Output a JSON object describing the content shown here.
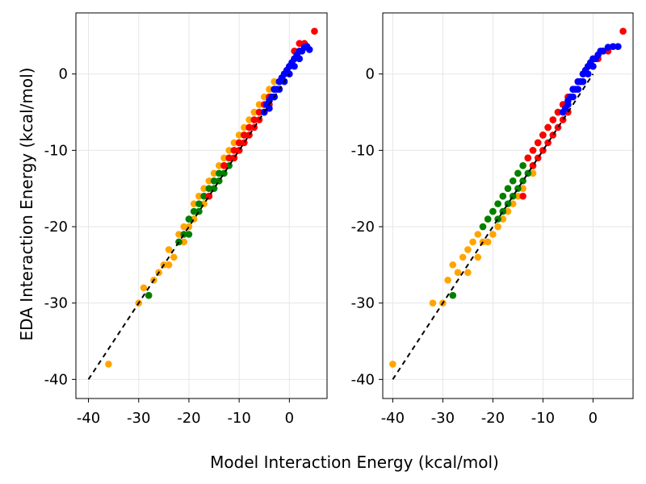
{
  "colors": {
    "orange": "#ffa500",
    "green": "#008000",
    "red": "#ff0000",
    "blue": "#0000ff",
    "reference_line": "#000000",
    "grid": "#e6e6e6"
  },
  "xlabel": "Model Interaction Energy (kcal/mol)",
  "ylabel": "EDA Interaction Energy (kcal/mol)",
  "chart_data": [
    {
      "type": "scatter",
      "xlim": [
        -42.5,
        7.5
      ],
      "ylim": [
        -42.5,
        8
      ],
      "x_ticks": [
        -40,
        -30,
        -20,
        -10,
        0
      ],
      "y_ticks": [
        -40,
        -30,
        -20,
        -10,
        0
      ],
      "x_tick_labels": [
        "-40",
        "-30",
        "-20",
        "-10",
        "0"
      ],
      "y_tick_labels": [
        "-40",
        "-30",
        "-20",
        "-10",
        "0"
      ],
      "grid": true,
      "reference_line": {
        "style": "dashed",
        "from": [
          -40,
          -40
        ],
        "to": [
          0,
          0
        ]
      },
      "series": [
        {
          "color": "orange",
          "points": [
            [
              -36,
              -38
            ],
            [
              -30,
              -30
            ],
            [
              -29,
              -28
            ],
            [
              -28,
              -29
            ],
            [
              -27,
              -27
            ],
            [
              -26,
              -26
            ],
            [
              -25,
              -25
            ],
            [
              -24,
              -25
            ],
            [
              -24,
              -23
            ],
            [
              -23,
              -24
            ],
            [
              -22,
              -22
            ],
            [
              -22,
              -21
            ],
            [
              -21,
              -22
            ],
            [
              -21,
              -20
            ],
            [
              -20,
              -20
            ],
            [
              -20,
              -19
            ],
            [
              -19,
              -19
            ],
            [
              -19,
              -17
            ],
            [
              -18,
              -18
            ],
            [
              -18,
              -16
            ],
            [
              -17,
              -17
            ],
            [
              -17,
              -15
            ],
            [
              -16,
              -16
            ],
            [
              -16,
              -14
            ],
            [
              -15,
              -14
            ],
            [
              -15,
              -13
            ],
            [
              -14,
              -14
            ],
            [
              -14,
              -12
            ],
            [
              -13,
              -12
            ],
            [
              -13,
              -11
            ],
            [
              -12,
              -11
            ],
            [
              -12,
              -10
            ],
            [
              -11,
              -9
            ],
            [
              -10,
              -8
            ],
            [
              -9,
              -7
            ],
            [
              -8,
              -6
            ],
            [
              -7,
              -5
            ],
            [
              -6,
              -4
            ],
            [
              -5,
              -3
            ],
            [
              -4,
              -2
            ],
            [
              -3,
              -1
            ]
          ]
        },
        {
          "color": "green",
          "points": [
            [
              -28,
              -29
            ],
            [
              -22,
              -22
            ],
            [
              -21,
              -21
            ],
            [
              -20,
              -21
            ],
            [
              -20,
              -19
            ],
            [
              -19,
              -18
            ],
            [
              -18,
              -18
            ],
            [
              -18,
              -17
            ],
            [
              -17,
              -16
            ],
            [
              -16,
              -16
            ],
            [
              -16,
              -15
            ],
            [
              -15,
              -14
            ],
            [
              -15,
              -15
            ],
            [
              -14,
              -13
            ],
            [
              -14,
              -14
            ],
            [
              -13,
              -12
            ],
            [
              -13,
              -13
            ],
            [
              -12,
              -12
            ],
            [
              -12,
              -11
            ],
            [
              -11,
              -10
            ],
            [
              -11,
              -11
            ],
            [
              -10,
              -9
            ],
            [
              -10,
              -10
            ],
            [
              -9,
              -8
            ],
            [
              -8,
              -7
            ],
            [
              -7,
              -6
            ],
            [
              -6,
              -5
            ],
            [
              -5,
              -5
            ],
            [
              -4,
              -3
            ],
            [
              -3,
              -3
            ],
            [
              -2,
              -1
            ],
            [
              -1,
              0
            ],
            [
              0,
              1
            ]
          ]
        },
        {
          "color": "red",
          "points": [
            [
              -16,
              -16
            ],
            [
              -13,
              -12
            ],
            [
              -12,
              -11
            ],
            [
              -11,
              -10
            ],
            [
              -11,
              -11
            ],
            [
              -10,
              -9
            ],
            [
              -10,
              -10
            ],
            [
              -9,
              -8
            ],
            [
              -9,
              -9
            ],
            [
              -8,
              -7
            ],
            [
              -8,
              -8
            ],
            [
              -7,
              -6
            ],
            [
              -7,
              -7
            ],
            [
              -6,
              -5
            ],
            [
              -6,
              -6
            ],
            [
              -5,
              -4
            ],
            [
              -5,
              -5
            ],
            [
              -4,
              -3
            ],
            [
              -4,
              -4
            ],
            [
              -3,
              -2
            ],
            [
              -2,
              -1
            ],
            [
              -1,
              0
            ],
            [
              0,
              1
            ],
            [
              1,
              2
            ],
            [
              1,
              3
            ],
            [
              2,
              4
            ],
            [
              3,
              4
            ],
            [
              5,
              5.6
            ]
          ]
        },
        {
          "color": "blue",
          "points": [
            [
              -5,
              -5
            ],
            [
              -4.5,
              -4
            ],
            [
              -4,
              -3.5
            ],
            [
              -4,
              -4.5
            ],
            [
              -3.5,
              -3
            ],
            [
              -3,
              -2
            ],
            [
              -3,
              -3
            ],
            [
              -2.5,
              -2
            ],
            [
              -2,
              -1
            ],
            [
              -2,
              -2
            ],
            [
              -1.5,
              -0.5
            ],
            [
              -1,
              0
            ],
            [
              -1,
              -1
            ],
            [
              -0.5,
              0.5
            ],
            [
              0,
              1
            ],
            [
              0,
              0
            ],
            [
              0.5,
              1.5
            ],
            [
              1,
              2
            ],
            [
              1,
              1
            ],
            [
              1.5,
              2.5
            ],
            [
              2,
              3
            ],
            [
              2,
              2
            ],
            [
              2.5,
              3
            ],
            [
              3,
              3.5
            ],
            [
              3.5,
              3.6
            ],
            [
              4,
              3.2
            ]
          ]
        }
      ]
    },
    {
      "type": "scatter",
      "xlim": [
        -42,
        8
      ],
      "ylim": [
        -42.5,
        8
      ],
      "x_ticks": [
        -40,
        -30,
        -20,
        -10,
        0
      ],
      "y_ticks": [
        -40,
        -30,
        -20,
        -10,
        0
      ],
      "x_tick_labels": [
        "-40",
        "-30",
        "-20",
        "-10",
        "0"
      ],
      "y_tick_labels": [
        "-40",
        "-30",
        "-20",
        "-10",
        "0"
      ],
      "grid": true,
      "reference_line": {
        "style": "dashed",
        "from": [
          -40,
          -40
        ],
        "to": [
          0,
          0
        ]
      },
      "series": [
        {
          "color": "orange",
          "points": [
            [
              -40,
              -38
            ],
            [
              -32,
              -30
            ],
            [
              -30,
              -30
            ],
            [
              -29,
              -27
            ],
            [
              -28,
              -25
            ],
            [
              -27,
              -26
            ],
            [
              -26,
              -24
            ],
            [
              -25,
              -23
            ],
            [
              -25,
              -26
            ],
            [
              -24,
              -22
            ],
            [
              -23,
              -24
            ],
            [
              -23,
              -21
            ],
            [
              -22,
              -22
            ],
            [
              -22,
              -20
            ],
            [
              -21,
              -19
            ],
            [
              -21,
              -22
            ],
            [
              -20,
              -18
            ],
            [
              -20,
              -21
            ],
            [
              -19,
              -17
            ],
            [
              -19,
              -20
            ],
            [
              -18,
              -16
            ],
            [
              -18,
              -19
            ],
            [
              -17,
              -15
            ],
            [
              -17,
              -18
            ],
            [
              -16,
              -14
            ],
            [
              -16,
              -17
            ],
            [
              -15,
              -13
            ],
            [
              -15,
              -16
            ],
            [
              -14,
              -12
            ],
            [
              -14,
              -15
            ],
            [
              -13,
              -11
            ],
            [
              -12,
              -10
            ],
            [
              -12,
              -13
            ],
            [
              -11,
              -9
            ],
            [
              -10,
              -8
            ],
            [
              -9,
              -7
            ],
            [
              -8,
              -6
            ]
          ]
        },
        {
          "color": "green",
          "points": [
            [
              -28,
              -29
            ],
            [
              -22,
              -20
            ],
            [
              -21,
              -19
            ],
            [
              -20,
              -18
            ],
            [
              -19,
              -17
            ],
            [
              -19,
              -19
            ],
            [
              -18,
              -16
            ],
            [
              -18,
              -18
            ],
            [
              -17,
              -15
            ],
            [
              -17,
              -17
            ],
            [
              -16,
              -14
            ],
            [
              -16,
              -16
            ],
            [
              -15,
              -13
            ],
            [
              -15,
              -15
            ],
            [
              -14,
              -12
            ],
            [
              -14,
              -14
            ],
            [
              -13,
              -11
            ],
            [
              -13,
              -13
            ],
            [
              -12,
              -10
            ],
            [
              -12,
              -12
            ],
            [
              -11,
              -9
            ],
            [
              -10,
              -8
            ],
            [
              -9,
              -7
            ],
            [
              -8,
              -6
            ],
            [
              -7,
              -5
            ],
            [
              -6,
              -4
            ]
          ]
        },
        {
          "color": "red",
          "points": [
            [
              -14,
              -16
            ],
            [
              -13,
              -11
            ],
            [
              -12,
              -10
            ],
            [
              -12,
              -12
            ],
            [
              -11,
              -9
            ],
            [
              -11,
              -11
            ],
            [
              -10,
              -8
            ],
            [
              -10,
              -10
            ],
            [
              -9,
              -7
            ],
            [
              -9,
              -9
            ],
            [
              -8,
              -6
            ],
            [
              -8,
              -8
            ],
            [
              -7,
              -5
            ],
            [
              -7,
              -7
            ],
            [
              -6,
              -4
            ],
            [
              -6,
              -6
            ],
            [
              -5,
              -3
            ],
            [
              -5,
              -5
            ],
            [
              -4,
              -2
            ],
            [
              -3,
              -1
            ],
            [
              -2,
              0
            ],
            [
              -1,
              1
            ],
            [
              0,
              1
            ],
            [
              1,
              2
            ],
            [
              2,
              3
            ],
            [
              3,
              3
            ],
            [
              6,
              5.6
            ]
          ]
        },
        {
          "color": "blue",
          "points": [
            [
              -6,
              -5
            ],
            [
              -5.5,
              -4.5
            ],
            [
              -5,
              -4
            ],
            [
              -5,
              -3.5
            ],
            [
              -4.5,
              -3
            ],
            [
              -4,
              -3
            ],
            [
              -4,
              -2
            ],
            [
              -3.5,
              -2
            ],
            [
              -3,
              -1
            ],
            [
              -3,
              -2
            ],
            [
              -2.5,
              -1
            ],
            [
              -2,
              0
            ],
            [
              -2,
              -1
            ],
            [
              -1.5,
              0.5
            ],
            [
              -1,
              0
            ],
            [
              -1,
              1
            ],
            [
              -0.5,
              1.5
            ],
            [
              0,
              1
            ],
            [
              0,
              2
            ],
            [
              0.5,
              2
            ],
            [
              1,
              2.5
            ],
            [
              1.5,
              3
            ],
            [
              2,
              3
            ],
            [
              3,
              3.5
            ],
            [
              4,
              3.6
            ],
            [
              5,
              3.6
            ]
          ]
        }
      ]
    }
  ]
}
